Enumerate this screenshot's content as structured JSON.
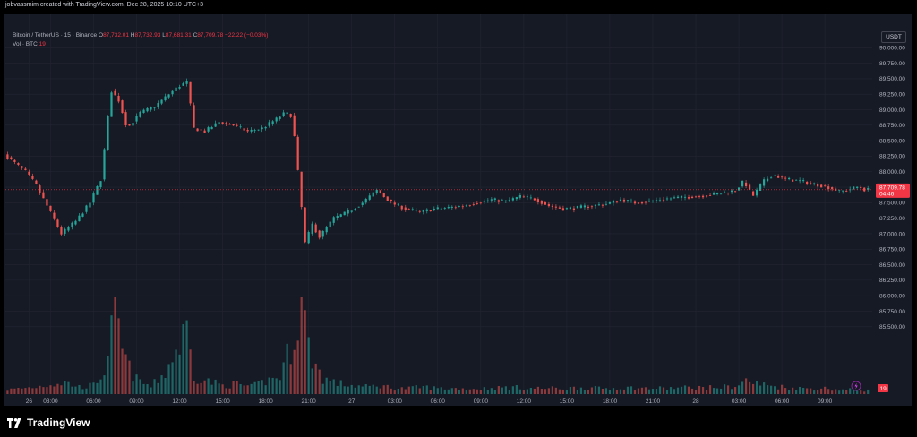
{
  "caption": "jobvassmim created with TradingView.com, Dec 28, 2025 10:10 UTC+3",
  "legend": {
    "symbol": "Bitcoin / TetherUS · 15 · Binance",
    "o_label": "O",
    "o": "87,732.01",
    "h_label": "H",
    "h": "87,732.93",
    "l_label": "L",
    "l": "87,681.31",
    "c_label": "C",
    "c": "87,709.78",
    "change": "−22.22 (−0.03%)"
  },
  "volume_legend": {
    "label": "Vol · BTC",
    "value": "19"
  },
  "currency": "USDT",
  "brand": "TradingView",
  "colors": {
    "up": "#26a69a",
    "down": "#ef5350",
    "background": "#161a25",
    "grid": "#232632",
    "price_tag": "#f23645"
  },
  "price_tag": {
    "price": "87,709.78",
    "countdown": "04:46"
  },
  "volume_tag": "19",
  "lightning_icon": "lightning-icon",
  "chart_data": {
    "type": "candlestick",
    "ylim": [
      84500,
      90250
    ],
    "y_ticks": [
      "90,000.00",
      "89,750.00",
      "89,500.00",
      "89,250.00",
      "89,000.00",
      "88,750.00",
      "88,500.00",
      "88,250.00",
      "88,000.00",
      "87,750.00",
      "87,500.00",
      "87,250.00",
      "87,000.00",
      "86,750.00",
      "86,500.00",
      "86,250.00",
      "86,000.00",
      "85,750.00",
      "85,500.00"
    ],
    "y_tick_values": [
      90000,
      89750,
      89500,
      89250,
      89000,
      88750,
      88500,
      88250,
      88000,
      87750,
      87500,
      87250,
      87000,
      86750,
      86500,
      86250,
      86000,
      85750,
      85500
    ],
    "x_ticks": [
      {
        "label": "26",
        "hour": 1.5
      },
      {
        "label": "03:00",
        "hour": 3
      },
      {
        "label": "06:00",
        "hour": 6
      },
      {
        "label": "09:00",
        "hour": 9
      },
      {
        "label": "12:00",
        "hour": 12
      },
      {
        "label": "15:00",
        "hour": 15
      },
      {
        "label": "18:00",
        "hour": 18
      },
      {
        "label": "21:00",
        "hour": 21
      },
      {
        "label": "27",
        "hour": 24
      },
      {
        "label": "03:00",
        "hour": 27
      },
      {
        "label": "06:00",
        "hour": 30
      },
      {
        "label": "09:00",
        "hour": 33
      },
      {
        "label": "12:00",
        "hour": 36
      },
      {
        "label": "15:00",
        "hour": 39
      },
      {
        "label": "18:00",
        "hour": 42
      },
      {
        "label": "21:00",
        "hour": 45
      },
      {
        "label": "28",
        "hour": 48
      },
      {
        "label": "03:00",
        "hour": 51
      },
      {
        "label": "06:00",
        "hour": 54
      },
      {
        "label": "09:00",
        "hour": 57
      }
    ],
    "x_range_hours": [
      -0.15,
      60.3
    ],
    "price_path": [
      [
        0,
        88280
      ],
      [
        1.5,
        88000
      ],
      [
        2.2,
        87800
      ],
      [
        3,
        87450
      ],
      [
        4,
        87000
      ],
      [
        5,
        87200
      ],
      [
        6,
        87500
      ],
      [
        6.8,
        87900
      ],
      [
        7.2,
        88800
      ],
      [
        7.5,
        89300
      ],
      [
        8,
        89150
      ],
      [
        8.6,
        88700
      ],
      [
        9.5,
        88950
      ],
      [
        10.5,
        89050
      ],
      [
        11.5,
        89250
      ],
      [
        12.2,
        89380
      ],
      [
        12.8,
        89450
      ],
      [
        13.2,
        88700
      ],
      [
        14,
        88650
      ],
      [
        15,
        88800
      ],
      [
        16,
        88750
      ],
      [
        17,
        88650
      ],
      [
        18,
        88700
      ],
      [
        19,
        88850
      ],
      [
        19.6,
        88950
      ],
      [
        20.1,
        88900
      ],
      [
        20.5,
        88000
      ],
      [
        21,
        86850
      ],
      [
        21.5,
        87150
      ],
      [
        22,
        86950
      ],
      [
        23,
        87250
      ],
      [
        24,
        87350
      ],
      [
        25,
        87500
      ],
      [
        26,
        87700
      ],
      [
        27,
        87500
      ],
      [
        28,
        87400
      ],
      [
        29,
        87350
      ],
      [
        30,
        87400
      ],
      [
        31,
        87420
      ],
      [
        32,
        87450
      ],
      [
        33,
        87500
      ],
      [
        34,
        87550
      ],
      [
        35,
        87520
      ],
      [
        36,
        87600
      ],
      [
        37,
        87560
      ],
      [
        38,
        87450
      ],
      [
        39,
        87400
      ],
      [
        40,
        87420
      ],
      [
        41,
        87450
      ],
      [
        42,
        87480
      ],
      [
        43,
        87550
      ],
      [
        44,
        87500
      ],
      [
        45,
        87520
      ],
      [
        46,
        87560
      ],
      [
        47,
        87580
      ],
      [
        48,
        87600
      ],
      [
        49,
        87620
      ],
      [
        50,
        87650
      ],
      [
        51,
        87700
      ],
      [
        51.6,
        87850
      ],
      [
        52.2,
        87600
      ],
      [
        53,
        87850
      ],
      [
        53.6,
        87950
      ],
      [
        54.5,
        87880
      ],
      [
        55.5,
        87850
      ],
      [
        56.5,
        87800
      ],
      [
        57.5,
        87750
      ],
      [
        58.3,
        87680
      ],
      [
        59,
        87720
      ],
      [
        59.6,
        87760
      ],
      [
        60,
        87710
      ]
    ],
    "volume_path": [
      [
        0,
        6
      ],
      [
        1,
        8
      ],
      [
        2,
        10
      ],
      [
        3,
        14
      ],
      [
        4,
        16
      ],
      [
        5,
        10
      ],
      [
        6,
        12
      ],
      [
        7,
        40
      ],
      [
        7.5,
        125
      ],
      [
        8,
        60
      ],
      [
        8.5,
        35
      ],
      [
        9,
        20
      ],
      [
        10,
        10
      ],
      [
        11,
        30
      ],
      [
        12,
        70
      ],
      [
        12.5,
        90
      ],
      [
        13,
        25
      ],
      [
        14,
        18
      ],
      [
        15,
        12
      ],
      [
        16,
        14
      ],
      [
        17,
        10
      ],
      [
        18,
        18
      ],
      [
        19,
        25
      ],
      [
        20,
        80
      ],
      [
        20.5,
        135
      ],
      [
        21,
        65
      ],
      [
        21.5,
        40
      ],
      [
        22,
        22
      ],
      [
        23,
        15
      ],
      [
        24,
        12
      ],
      [
        25,
        10
      ],
      [
        26,
        12
      ],
      [
        27,
        8
      ],
      [
        28,
        8
      ],
      [
        29,
        10
      ],
      [
        30,
        8
      ],
      [
        31,
        8
      ],
      [
        32,
        7
      ],
      [
        33,
        8
      ],
      [
        34,
        8
      ],
      [
        35,
        10
      ],
      [
        36,
        8
      ],
      [
        37,
        8
      ],
      [
        38,
        8
      ],
      [
        39,
        8
      ],
      [
        40,
        9
      ],
      [
        41,
        8
      ],
      [
        42,
        8
      ],
      [
        43,
        9
      ],
      [
        44,
        8
      ],
      [
        45,
        8
      ],
      [
        46,
        8
      ],
      [
        47,
        9
      ],
      [
        48,
        9
      ],
      [
        49,
        9
      ],
      [
        50,
        10
      ],
      [
        51,
        12
      ],
      [
        51.6,
        20
      ],
      [
        52,
        15
      ],
      [
        53,
        12
      ],
      [
        54,
        10
      ],
      [
        55,
        8
      ],
      [
        56,
        8
      ],
      [
        57,
        8
      ],
      [
        58,
        6
      ],
      [
        59,
        6
      ],
      [
        60,
        5
      ]
    ],
    "volume_max": 135,
    "last_price": 87709.78,
    "last_volume": 19
  }
}
